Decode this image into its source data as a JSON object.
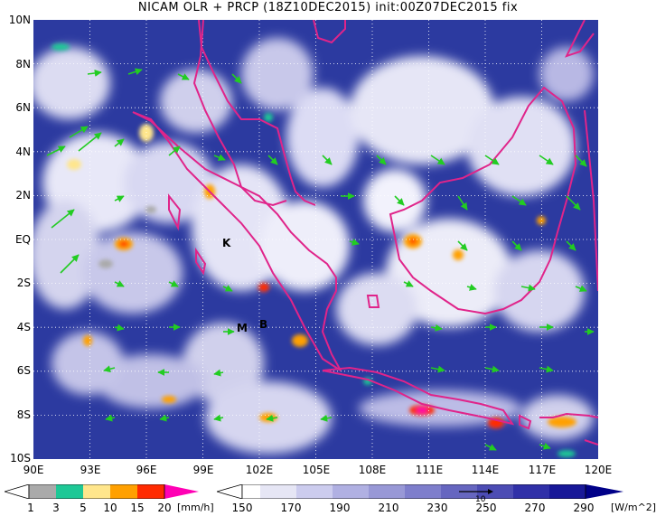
{
  "title": "NICAM OLR + PRCP (18Z10DEC2015) init:00Z07DEC2015 fix",
  "map": {
    "y_ticks": [
      "10N",
      "8N",
      "6N",
      "4N",
      "2N",
      "EQ",
      "2S",
      "4S",
      "6S",
      "8S",
      "10S"
    ],
    "x_ticks": [
      "90E",
      "93E",
      "96E",
      "99E",
      "102E",
      "105E",
      "108E",
      "111E",
      "114E",
      "117E",
      "120E"
    ],
    "station_labels": [
      "K",
      "M",
      "B"
    ]
  },
  "prcp_scale": {
    "labels": [
      "1",
      "3",
      "5",
      "10",
      "15",
      "20"
    ],
    "unit": "[mm/h]",
    "colors": [
      "#aaaaaa",
      "#1ec896",
      "#ffe68c",
      "#ffa000",
      "#ff2a00",
      "#ff00b4"
    ]
  },
  "olr_scale": {
    "labels": [
      "150",
      "170",
      "190",
      "210",
      "230",
      "250",
      "270",
      "290"
    ],
    "unit": "[W/m^2]",
    "colors": [
      "#ffffff",
      "#e6e6f5",
      "#ccccee",
      "#b0b0e2",
      "#9898d6",
      "#7e7ecc",
      "#6666c0",
      "#4c4cb4",
      "#3030a8",
      "#181898",
      "#000088"
    ]
  },
  "vector_reference": "10",
  "colors": {
    "ocean_background": "#2c3aa0",
    "coastline": "#e0248a",
    "wind_vector": "#22cc22",
    "grid": "#ffffff"
  }
}
